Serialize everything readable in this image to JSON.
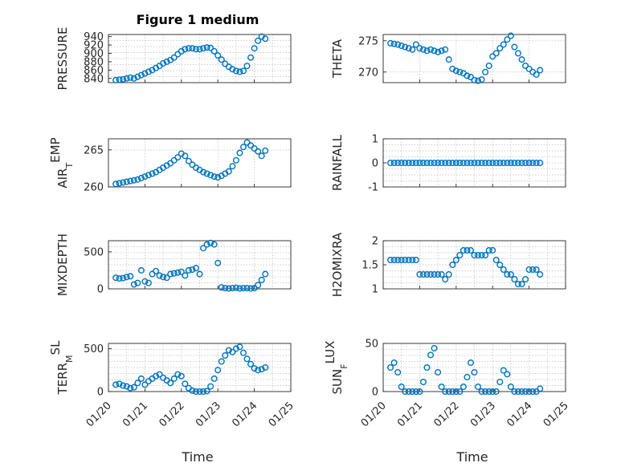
{
  "figure_title": "Figure 1 medium",
  "chart_data": [
    {
      "id": "pressure",
      "type": "scatter",
      "ylabel": "PRESSURE",
      "ylim": [
        830,
        945
      ],
      "yticks": [
        840,
        860,
        880,
        900,
        920,
        940
      ],
      "grid_minor": true,
      "x": [
        20.2,
        20.3,
        20.4,
        20.5,
        20.6,
        20.7,
        20.8,
        20.9,
        21.0,
        21.1,
        21.2,
        21.3,
        21.4,
        21.5,
        21.6,
        21.7,
        21.8,
        21.9,
        22.0,
        22.1,
        22.2,
        22.3,
        22.4,
        22.5,
        22.6,
        22.7,
        22.8,
        22.9,
        23.0,
        23.1,
        23.2,
        23.3,
        23.4,
        23.5,
        23.6,
        23.7,
        23.8,
        23.9,
        24.0,
        24.1,
        24.2,
        24.3
      ],
      "y": [
        836,
        837,
        838,
        840,
        842,
        840,
        844,
        848,
        852,
        856,
        860,
        865,
        870,
        876,
        880,
        884,
        890,
        898,
        905,
        910,
        912,
        912,
        910,
        910,
        912,
        914,
        913,
        905,
        895,
        885,
        875,
        868,
        862,
        858,
        856,
        858,
        870,
        890,
        912,
        930,
        940,
        935
      ]
    },
    {
      "id": "theta",
      "type": "scatter",
      "ylabel": "THETA",
      "ylim": [
        268.3,
        276
      ],
      "yticks": [
        270,
        275
      ],
      "grid_minor": false,
      "x": [
        20.2,
        20.3,
        20.4,
        20.5,
        20.6,
        20.7,
        20.8,
        20.9,
        21.0,
        21.1,
        21.2,
        21.3,
        21.4,
        21.5,
        21.6,
        21.7,
        21.8,
        21.9,
        22.0,
        22.1,
        22.2,
        22.3,
        22.4,
        22.5,
        22.6,
        22.7,
        22.8,
        22.9,
        23.0,
        23.1,
        23.2,
        23.3,
        23.4,
        23.5,
        23.6,
        23.7,
        23.8,
        23.9,
        24.0,
        24.1,
        24.2,
        24.3
      ],
      "y": [
        274.6,
        274.5,
        274.4,
        274.2,
        274.0,
        273.8,
        273.6,
        274.4,
        273.8,
        273.6,
        273.4,
        273.6,
        273.4,
        273.2,
        273.4,
        273.6,
        272.0,
        270.5,
        270.2,
        270.0,
        269.8,
        269.4,
        269.2,
        268.7,
        268.6,
        268.8,
        270.0,
        271.0,
        272.5,
        273.0,
        273.8,
        274.4,
        275.2,
        275.8,
        274.0,
        273.0,
        272.0,
        271.0,
        270.5,
        270.0,
        269.6,
        270.3
      ]
    },
    {
      "id": "air_temp",
      "type": "scatter",
      "ylabel": "AIR",
      "ylabel_sub": "T",
      "ylabel_post": "EMP",
      "ylim": [
        260,
        266.5
      ],
      "yticks": [
        260,
        265
      ],
      "grid_minor": false,
      "x": [
        20.2,
        20.3,
        20.4,
        20.5,
        20.6,
        20.7,
        20.8,
        20.9,
        21.0,
        21.1,
        21.2,
        21.3,
        21.4,
        21.5,
        21.6,
        21.7,
        21.8,
        21.9,
        22.0,
        22.1,
        22.2,
        22.3,
        22.4,
        22.5,
        22.6,
        22.7,
        22.8,
        22.9,
        23.0,
        23.1,
        23.2,
        23.3,
        23.4,
        23.5,
        23.6,
        23.7,
        23.8,
        23.9,
        24.0,
        24.1,
        24.2,
        24.3
      ],
      "y": [
        260.4,
        260.5,
        260.6,
        260.7,
        260.8,
        260.9,
        261.0,
        261.2,
        261.4,
        261.6,
        261.8,
        262.0,
        262.3,
        262.6,
        262.9,
        263.2,
        263.6,
        264.0,
        264.5,
        264.2,
        263.5,
        263.0,
        262.6,
        262.3,
        262.0,
        261.8,
        261.6,
        261.4,
        261.3,
        261.5,
        261.8,
        262.1,
        262.8,
        263.6,
        264.6,
        265.4,
        266.0,
        265.6,
        265.2,
        264.8,
        264.2,
        264.9
      ]
    },
    {
      "id": "rainfall",
      "type": "scatter",
      "ylabel": "RAINFALL",
      "ylim": [
        -1,
        1
      ],
      "yticks": [
        -1,
        0,
        1
      ],
      "grid_minor": true,
      "x": [
        20.2,
        20.3,
        20.4,
        20.5,
        20.6,
        20.7,
        20.8,
        20.9,
        21.0,
        21.1,
        21.2,
        21.3,
        21.4,
        21.5,
        21.6,
        21.7,
        21.8,
        21.9,
        22.0,
        22.1,
        22.2,
        22.3,
        22.4,
        22.5,
        22.6,
        22.7,
        22.8,
        22.9,
        23.0,
        23.1,
        23.2,
        23.3,
        23.4,
        23.5,
        23.6,
        23.7,
        23.8,
        23.9,
        24.0,
        24.1,
        24.2,
        24.3
      ],
      "y": [
        0,
        0,
        0,
        0,
        0,
        0,
        0,
        0,
        0,
        0,
        0,
        0,
        0,
        0,
        0,
        0,
        0,
        0,
        0,
        0,
        0,
        0,
        0,
        0,
        0,
        0,
        0,
        0,
        0,
        0,
        0,
        0,
        0,
        0,
        0,
        0,
        0,
        0,
        0,
        0,
        0,
        0
      ]
    },
    {
      "id": "mixdepth",
      "type": "scatter",
      "ylabel": "MIXDEPTH",
      "ylim": [
        0,
        650
      ],
      "yticks": [
        0,
        500
      ],
      "grid_minor": true,
      "x": [
        20.2,
        20.3,
        20.4,
        20.5,
        20.6,
        20.7,
        20.8,
        20.9,
        21.0,
        21.1,
        21.2,
        21.3,
        21.4,
        21.5,
        21.6,
        21.7,
        21.8,
        21.9,
        22.0,
        22.1,
        22.2,
        22.3,
        22.4,
        22.5,
        22.6,
        22.7,
        22.8,
        22.9,
        23.0,
        23.1,
        23.2,
        23.3,
        23.4,
        23.5,
        23.6,
        23.7,
        23.8,
        23.9,
        24.0,
        24.1,
        24.2,
        24.3
      ],
      "y": [
        150,
        140,
        145,
        160,
        170,
        60,
        80,
        250,
        100,
        80,
        200,
        240,
        180,
        160,
        150,
        200,
        210,
        220,
        230,
        180,
        250,
        260,
        280,
        200,
        550,
        600,
        620,
        600,
        350,
        20,
        10,
        5,
        10,
        15,
        5,
        10,
        10,
        5,
        10,
        50,
        120,
        200
      ]
    },
    {
      "id": "h2omixra",
      "type": "scatter",
      "ylabel": "H2OMIXRA",
      "ylim": [
        1,
        2
      ],
      "yticks": [
        1,
        1.5,
        2
      ],
      "grid_minor": true,
      "x": [
        20.2,
        20.3,
        20.4,
        20.5,
        20.6,
        20.7,
        20.8,
        20.9,
        21.0,
        21.1,
        21.2,
        21.3,
        21.4,
        21.5,
        21.6,
        21.7,
        21.8,
        21.9,
        22.0,
        22.1,
        22.2,
        22.3,
        22.4,
        22.5,
        22.6,
        22.7,
        22.8,
        22.9,
        23.0,
        23.1,
        23.2,
        23.3,
        23.4,
        23.5,
        23.6,
        23.7,
        23.8,
        23.9,
        24.0,
        24.1,
        24.2,
        24.3
      ],
      "y": [
        1.6,
        1.6,
        1.6,
        1.6,
        1.6,
        1.6,
        1.6,
        1.6,
        1.3,
        1.3,
        1.3,
        1.3,
        1.3,
        1.3,
        1.3,
        1.2,
        1.3,
        1.5,
        1.6,
        1.7,
        1.8,
        1.8,
        1.8,
        1.7,
        1.7,
        1.7,
        1.7,
        1.8,
        1.8,
        1.6,
        1.5,
        1.4,
        1.3,
        1.3,
        1.2,
        1.1,
        1.1,
        1.2,
        1.4,
        1.4,
        1.4,
        1.3
      ]
    },
    {
      "id": "terr_msl",
      "type": "scatter",
      "ylabel": "TERR",
      "ylabel_sub": "M",
      "ylabel_post": "SL",
      "ylim": [
        0,
        560
      ],
      "yticks": [
        0,
        500
      ],
      "grid_minor": true,
      "x": [
        20.2,
        20.3,
        20.4,
        20.5,
        20.6,
        20.7,
        20.8,
        20.9,
        21.0,
        21.1,
        21.2,
        21.3,
        21.4,
        21.5,
        21.6,
        21.7,
        21.8,
        21.9,
        22.0,
        22.1,
        22.2,
        22.3,
        22.4,
        22.5,
        22.6,
        22.7,
        22.8,
        22.9,
        23.0,
        23.1,
        23.2,
        23.3,
        23.4,
        23.5,
        23.6,
        23.7,
        23.8,
        23.9,
        24.0,
        24.1,
        24.2,
        24.3
      ],
      "y": [
        80,
        90,
        70,
        60,
        40,
        50,
        100,
        150,
        80,
        120,
        150,
        180,
        200,
        160,
        130,
        100,
        150,
        200,
        180,
        90,
        40,
        10,
        0,
        0,
        0,
        5,
        60,
        150,
        250,
        350,
        420,
        480,
        460,
        500,
        520,
        450,
        380,
        320,
        270,
        250,
        260,
        280
      ]
    },
    {
      "id": "sun_flux",
      "type": "scatter",
      "ylabel": "SUN",
      "ylabel_sub": "F",
      "ylabel_post": "LUX",
      "ylim": [
        0,
        50
      ],
      "yticks": [
        0,
        50
      ],
      "grid_minor": true,
      "x": [
        20.2,
        20.3,
        20.4,
        20.5,
        20.6,
        20.7,
        20.8,
        20.9,
        21.0,
        21.1,
        21.2,
        21.3,
        21.4,
        21.5,
        21.6,
        21.7,
        21.8,
        21.9,
        22.0,
        22.1,
        22.2,
        22.3,
        22.4,
        22.5,
        22.6,
        22.7,
        22.8,
        22.9,
        23.0,
        23.1,
        23.2,
        23.3,
        23.4,
        23.5,
        23.6,
        23.7,
        23.8,
        23.9,
        24.0,
        24.1,
        24.2,
        24.3
      ],
      "y": [
        25,
        30,
        20,
        5,
        0,
        0,
        0,
        0,
        0,
        10,
        25,
        38,
        45,
        20,
        5,
        0,
        0,
        0,
        0,
        0,
        5,
        15,
        30,
        20,
        5,
        0,
        0,
        0,
        0,
        0,
        10,
        22,
        18,
        5,
        0,
        0,
        0,
        0,
        0,
        0,
        0,
        3
      ]
    }
  ],
  "x_axis": {
    "xlim": [
      20,
      25
    ],
    "ticks": [
      20,
      21,
      22,
      23,
      24,
      25
    ],
    "ticklabels": [
      "01/20",
      "01/21",
      "01/22",
      "01/23",
      "01/24",
      "01/25"
    ],
    "xlabel": "Time"
  }
}
